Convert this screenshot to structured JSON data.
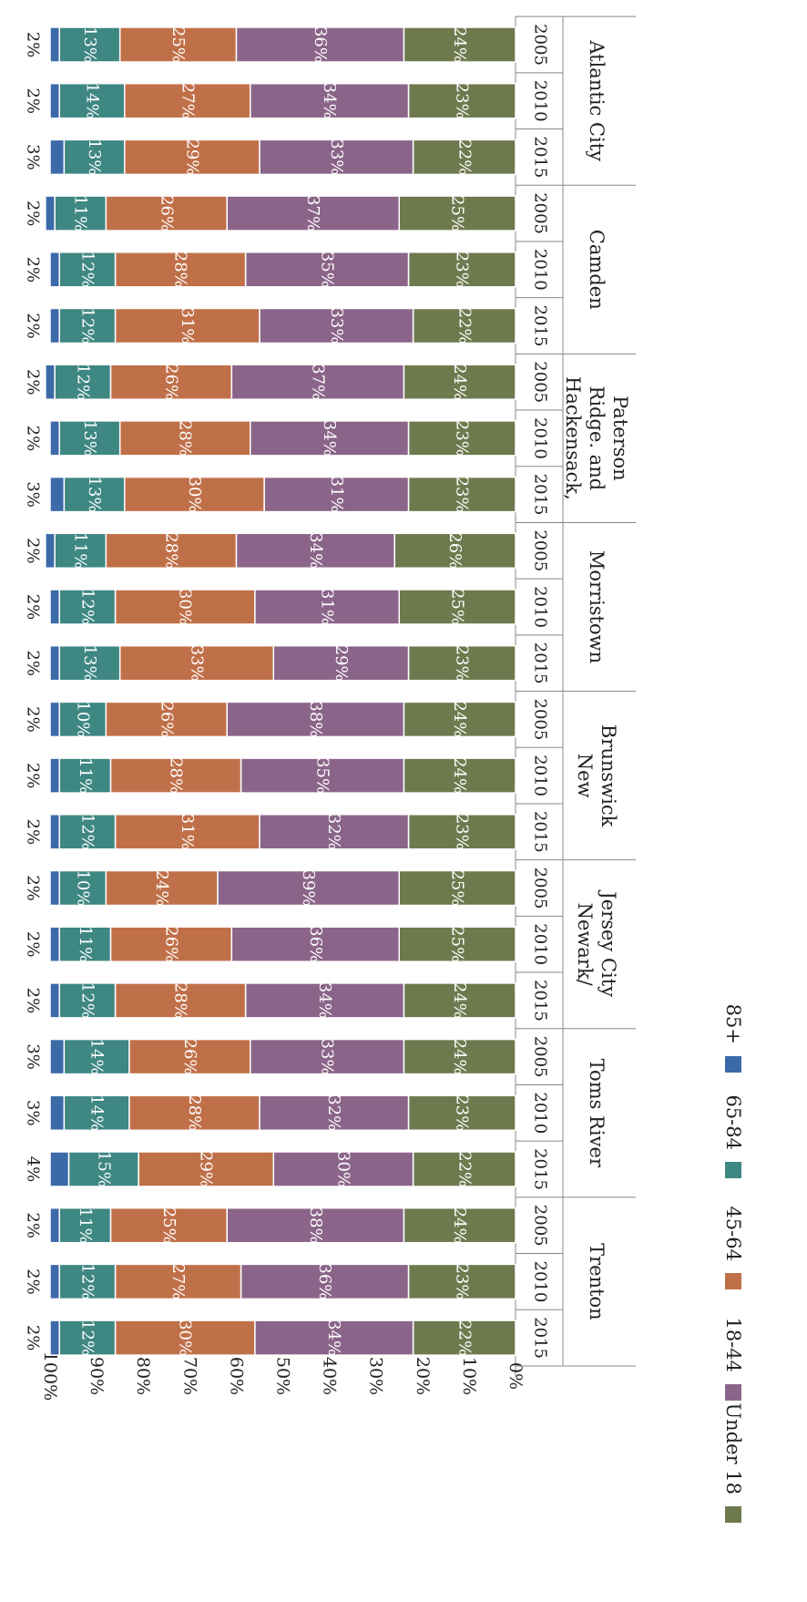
{
  "chart_data": {
    "type": "bar",
    "stacked": true,
    "orientation": "horizontal",
    "rotated_view": true,
    "value_axis_label": "",
    "value_ticks": [
      "0%",
      "10%",
      "20%",
      "30%",
      "40%",
      "50%",
      "60%",
      "70%",
      "80%",
      "90%",
      "100%"
    ],
    "value_range": [
      0,
      100
    ],
    "grid": false,
    "legend_position": "bottom",
    "segment_order": [
      "Under 18",
      "18-44",
      "45-64",
      "65-84",
      "85+"
    ],
    "legend": [
      {
        "name": "Under 18",
        "color": "#6e7a4e"
      },
      {
        "name": "18-44",
        "color": "#8b6589"
      },
      {
        "name": "45-64",
        "color": "#c07049"
      },
      {
        "name": "65-84",
        "color": "#3e8782"
      },
      {
        "name": "85+",
        "color": "#3c6aa8"
      }
    ],
    "groups": [
      {
        "name": "Atlantic City",
        "bars": [
          {
            "year": "2005",
            "values": [
              24,
              36,
              25,
              13,
              2
            ],
            "labels": [
              "24%",
              "36%",
              "25%",
              "13%",
              "2%"
            ]
          },
          {
            "year": "2010",
            "values": [
              23,
              34,
              27,
              14,
              2
            ],
            "labels": [
              "23%",
              "34%",
              "27%",
              "14%",
              "2%"
            ]
          },
          {
            "year": "2015",
            "values": [
              22,
              33,
              29,
              13,
              3
            ],
            "labels": [
              "22%",
              "33%",
              "29%",
              "13%",
              "3%"
            ]
          }
        ]
      },
      {
        "name": "Camden",
        "bars": [
          {
            "year": "2005",
            "values": [
              25,
              37,
              26,
              11,
              2
            ],
            "labels": [
              "25%",
              "37%",
              "26%",
              "11%",
              "2%"
            ]
          },
          {
            "year": "2010",
            "values": [
              23,
              35,
              28,
              12,
              2
            ],
            "labels": [
              "23%",
              "35%",
              "28%",
              "12%",
              "2%"
            ]
          },
          {
            "year": "2015",
            "values": [
              22,
              33,
              31,
              12,
              2
            ],
            "labels": [
              "22%",
              "33%",
              "31%",
              "12%",
              "2%"
            ]
          }
        ]
      },
      {
        "name": "Hackensack, Ridge. and Paterson",
        "bars": [
          {
            "year": "2005",
            "values": [
              24,
              37,
              26,
              12,
              2
            ],
            "labels": [
              "24%",
              "37%",
              "26%",
              "12%",
              "2%"
            ]
          },
          {
            "year": "2010",
            "values": [
              23,
              34,
              28,
              13,
              2
            ],
            "labels": [
              "23%",
              "34%",
              "28%",
              "13%",
              "2%"
            ]
          },
          {
            "year": "2015",
            "values": [
              23,
              31,
              30,
              13,
              3
            ],
            "labels": [
              "23%",
              "31%",
              "30%",
              "13%",
              "3%"
            ]
          }
        ]
      },
      {
        "name": "Morristown",
        "bars": [
          {
            "year": "2005",
            "values": [
              26,
              34,
              28,
              11,
              2
            ],
            "labels": [
              "26%",
              "34%",
              "28%",
              "11%",
              "2%"
            ]
          },
          {
            "year": "2010",
            "values": [
              25,
              31,
              30,
              12,
              2
            ],
            "labels": [
              "25%",
              "31%",
              "30%",
              "12%",
              "2%"
            ]
          },
          {
            "year": "2015",
            "values": [
              23,
              29,
              33,
              13,
              2
            ],
            "labels": [
              "23%",
              "29%",
              "33%",
              "13%",
              "2%"
            ]
          }
        ]
      },
      {
        "name": "New Brunswick",
        "bars": [
          {
            "year": "2005",
            "values": [
              24,
              38,
              26,
              10,
              2
            ],
            "labels": [
              "24%",
              "38%",
              "26%",
              "10%",
              "2%"
            ]
          },
          {
            "year": "2010",
            "values": [
              24,
              35,
              28,
              11,
              2
            ],
            "labels": [
              "24%",
              "35%",
              "28%",
              "11%",
              "2%"
            ]
          },
          {
            "year": "2015",
            "values": [
              23,
              32,
              31,
              12,
              2
            ],
            "labels": [
              "23%",
              "32%",
              "31%",
              "12%",
              "2%"
            ]
          }
        ]
      },
      {
        "name": "Newark/ Jersey City",
        "bars": [
          {
            "year": "2005",
            "values": [
              25,
              39,
              24,
              10,
              2
            ],
            "labels": [
              "25%",
              "39%",
              "24%",
              "10%",
              "2%"
            ]
          },
          {
            "year": "2010",
            "values": [
              25,
              36,
              26,
              11,
              2
            ],
            "labels": [
              "25%",
              "36%",
              "26%",
              "11%",
              "2%"
            ]
          },
          {
            "year": "2015",
            "values": [
              24,
              34,
              28,
              12,
              2
            ],
            "labels": [
              "24%",
              "34%",
              "28%",
              "12%",
              "2%"
            ]
          }
        ]
      },
      {
        "name": "Toms River",
        "bars": [
          {
            "year": "2005",
            "values": [
              24,
              33,
              26,
              14,
              3
            ],
            "labels": [
              "24%",
              "33%",
              "26%",
              "14%",
              "3%"
            ]
          },
          {
            "year": "2010",
            "values": [
              23,
              32,
              28,
              14,
              3
            ],
            "labels": [
              "23%",
              "32%",
              "28%",
              "14%",
              "3%"
            ]
          },
          {
            "year": "2015",
            "values": [
              22,
              30,
              29,
              15,
              4
            ],
            "labels": [
              "22%",
              "30%",
              "29%",
              "15%",
              "4%"
            ]
          }
        ]
      },
      {
        "name": "Trenton",
        "bars": [
          {
            "year": "2005",
            "values": [
              24,
              38,
              25,
              11,
              2
            ],
            "labels": [
              "24%",
              "38%",
              "25%",
              "11%",
              "2%"
            ]
          },
          {
            "year": "2010",
            "values": [
              23,
              36,
              27,
              12,
              2
            ],
            "labels": [
              "23%",
              "36%",
              "27%",
              "12%",
              "2%"
            ]
          },
          {
            "year": "2015",
            "values": [
              22,
              34,
              30,
              12,
              2
            ],
            "labels": [
              "22%",
              "34%",
              "30%",
              "12%",
              "2%"
            ]
          }
        ]
      }
    ]
  }
}
